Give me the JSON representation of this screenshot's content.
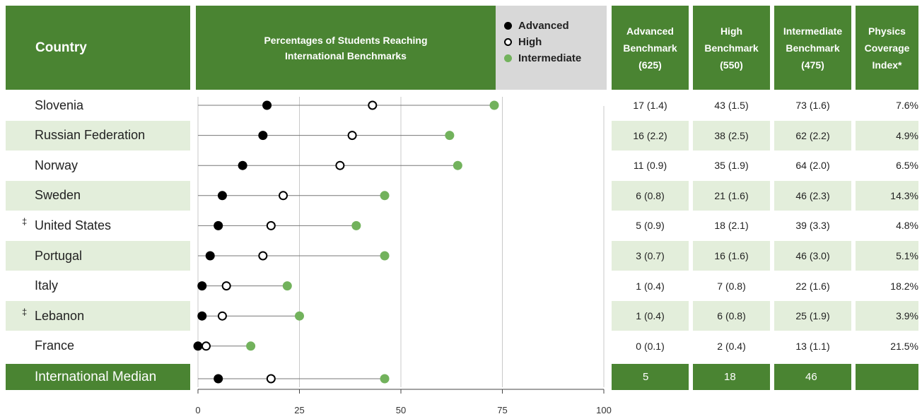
{
  "header": {
    "country_label": "Country",
    "chart_title_line1": "Percentages of Students Reaching",
    "chart_title_line2": "International Benchmarks",
    "legend": {
      "advanced": "Advanced",
      "high": "High",
      "intermediate": "Intermediate"
    },
    "columns": [
      {
        "line1": "Advanced",
        "line2": "Benchmark",
        "line3": "(625)"
      },
      {
        "line1": "High",
        "line2": "Benchmark",
        "line3": "(550)"
      },
      {
        "line1": "Intermediate",
        "line2": "Benchmark",
        "line3": "(475)"
      },
      {
        "line1": "Physics",
        "line2": "Coverage",
        "line3": "Index*"
      }
    ]
  },
  "rows": [
    {
      "country": "Slovenia",
      "dagger": "",
      "advanced": "17 (1.4)",
      "high": "43 (1.5)",
      "intermediate": "73 (1.6)",
      "coverage": "7.6%"
    },
    {
      "country": "Russian Federation",
      "dagger": "",
      "advanced": "16 (2.2)",
      "high": "38 (2.5)",
      "intermediate": "62 (2.2)",
      "coverage": "4.9%"
    },
    {
      "country": "Norway",
      "dagger": "",
      "advanced": "11 (0.9)",
      "high": "35 (1.9)",
      "intermediate": "64 (2.0)",
      "coverage": "6.5%"
    },
    {
      "country": "Sweden",
      "dagger": "",
      "advanced": "6 (0.8)",
      "high": "21 (1.6)",
      "intermediate": "46 (2.3)",
      "coverage": "14.3%"
    },
    {
      "country": "United States",
      "dagger": "‡",
      "advanced": "5 (0.9)",
      "high": "18 (2.1)",
      "intermediate": "39 (3.3)",
      "coverage": "4.8%"
    },
    {
      "country": "Portugal",
      "dagger": "",
      "advanced": "3 (0.7)",
      "high": "16 (1.6)",
      "intermediate": "46 (3.0)",
      "coverage": "5.1%"
    },
    {
      "country": "Italy",
      "dagger": "",
      "advanced": "1 (0.4)",
      "high": "7 (0.8)",
      "intermediate": "22 (1.6)",
      "coverage": "18.2%"
    },
    {
      "country": "Lebanon",
      "dagger": "‡",
      "advanced": "1 (0.4)",
      "high": "6 (0.8)",
      "intermediate": "25 (1.9)",
      "coverage": "3.9%"
    },
    {
      "country": "France",
      "dagger": "",
      "advanced": "0 (0.1)",
      "high": "2 (0.4)",
      "intermediate": "13 (1.1)",
      "coverage": "21.5%"
    }
  ],
  "median": {
    "label": "International Median",
    "advanced": "5",
    "high": "18",
    "intermediate": "46",
    "coverage": ""
  },
  "colors": {
    "header_green": "#4a8432",
    "stripe": "#e3eedb",
    "intermediate_dot": "#72b25c",
    "legend_bg": "#d8d8d8"
  },
  "chart_data": {
    "type": "scatter",
    "categories": [
      "Slovenia",
      "Russian Federation",
      "Norway",
      "Sweden",
      "United States",
      "Portugal",
      "Italy",
      "Lebanon",
      "France",
      "International Median"
    ],
    "series": [
      {
        "name": "Advanced",
        "values": [
          17,
          16,
          11,
          6,
          5,
          3,
          1,
          1,
          0,
          5
        ]
      },
      {
        "name": "High",
        "values": [
          43,
          38,
          35,
          21,
          18,
          16,
          7,
          6,
          2,
          18
        ]
      },
      {
        "name": "Intermediate",
        "values": [
          73,
          62,
          64,
          46,
          39,
          46,
          22,
          25,
          13,
          46
        ]
      }
    ],
    "xlim": [
      0,
      100
    ],
    "xticks": [
      "0",
      "25",
      "50",
      "75",
      "100"
    ],
    "grid": true
  }
}
